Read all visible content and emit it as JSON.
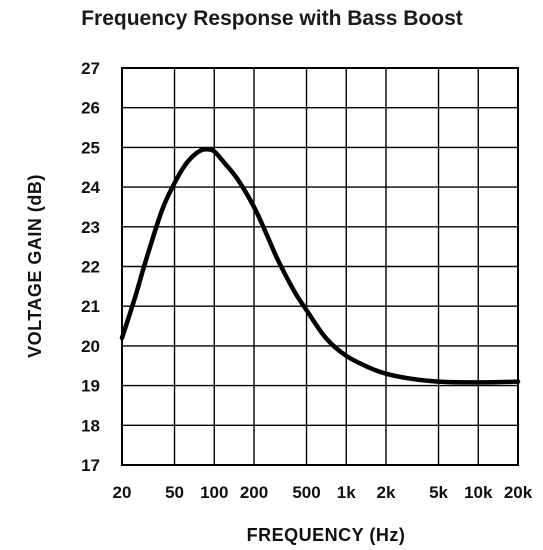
{
  "chart_data": {
    "type": "line",
    "title": "Frequency Response with Bass Boost",
    "xlabel": "FREQUENCY (Hz)",
    "ylabel": "VOLTAGE GAIN (dB)",
    "x_scale": "log",
    "xlim": [
      20,
      20000
    ],
    "ylim": [
      17,
      27
    ],
    "grid": true,
    "x_ticks": [
      {
        "value": 20,
        "label": "20"
      },
      {
        "value": 50,
        "label": "50"
      },
      {
        "value": 100,
        "label": "100"
      },
      {
        "value": 200,
        "label": "200"
      },
      {
        "value": 500,
        "label": "500"
      },
      {
        "value": 1000,
        "label": "1k"
      },
      {
        "value": 2000,
        "label": "2k"
      },
      {
        "value": 5000,
        "label": "5k"
      },
      {
        "value": 10000,
        "label": "10k"
      },
      {
        "value": 20000,
        "label": "20k"
      }
    ],
    "y_ticks": [
      17,
      18,
      19,
      20,
      21,
      22,
      23,
      24,
      25,
      26,
      27
    ],
    "series": [
      {
        "color": "#000000",
        "x": [
          20,
          25,
          30,
          40,
          50,
          60,
          70,
          80,
          90,
          100,
          120,
          150,
          200,
          250,
          300,
          400,
          500,
          700,
          1000,
          1500,
          2000,
          3000,
          5000,
          10000,
          20000
        ],
        "y": [
          20.2,
          21.2,
          22.1,
          23.4,
          24.1,
          24.55,
          24.8,
          24.93,
          24.95,
          24.9,
          24.6,
          24.2,
          23.5,
          22.8,
          22.2,
          21.4,
          20.9,
          20.2,
          19.75,
          19.45,
          19.3,
          19.18,
          19.1,
          19.08,
          19.1
        ]
      }
    ]
  }
}
